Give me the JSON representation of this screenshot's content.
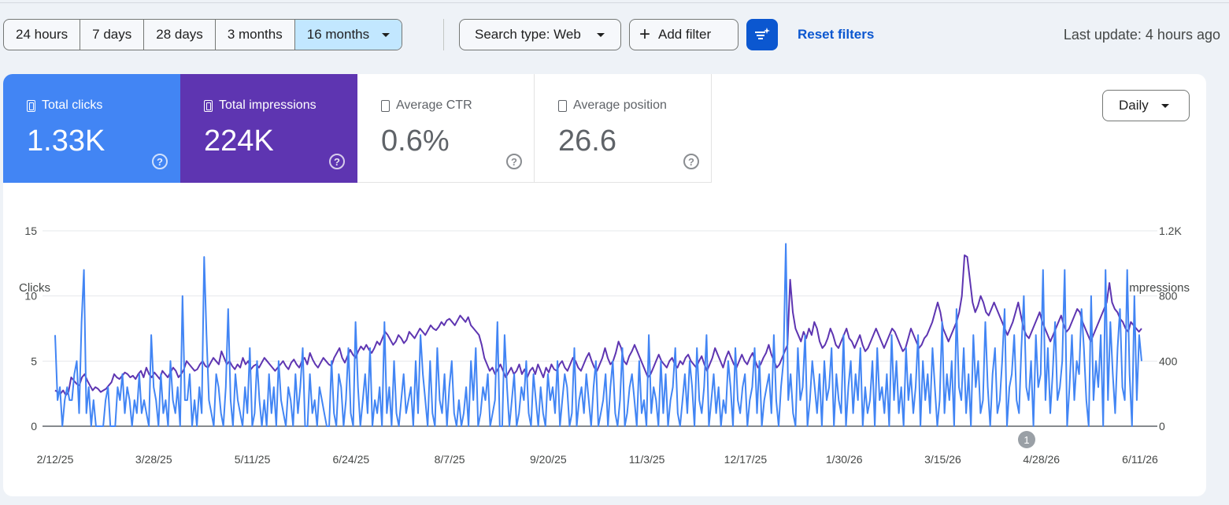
{
  "toolbar": {
    "date_ranges": [
      {
        "label": "24 hours",
        "active": false
      },
      {
        "label": "7 days",
        "active": false
      },
      {
        "label": "28 days",
        "active": false
      },
      {
        "label": "3 months",
        "active": false
      },
      {
        "label": "16 months",
        "active": true
      }
    ],
    "search_type": "Search type: Web",
    "add_filter": "Add filter",
    "reset_filters": "Reset filters",
    "last_update": "Last update: 4 hours ago"
  },
  "metrics": [
    {
      "label": "Total clicks",
      "value": "1.33K",
      "selected": true,
      "color": "#4285f4"
    },
    {
      "label": "Total impressions",
      "value": "224K",
      "selected": true,
      "color": "#5e35b1"
    },
    {
      "label": "Average CTR",
      "value": "0.6%",
      "selected": false
    },
    {
      "label": "Average position",
      "value": "26.6",
      "selected": false
    }
  ],
  "granularity": "Daily",
  "icons": {
    "dropdown": "chevron-down-icon",
    "add": "plus-icon",
    "ai_filter": "sparkle-filter-icon",
    "help": "help-circle-icon",
    "checkbox": "checkbox-icon"
  },
  "chart_data": {
    "type": "line",
    "left_axis_label": "Clicks",
    "right_axis_label": "Impressions",
    "y_left_range": [
      0,
      15
    ],
    "y_right_range": [
      0,
      1200
    ],
    "y_left_ticks": [
      "0",
      "5",
      "10",
      "15"
    ],
    "y_right_ticks": [
      "0",
      "400",
      "800",
      "1.2K"
    ],
    "x_tick_labels": [
      "2/12/25",
      "3/28/25",
      "5/11/25",
      "6/24/25",
      "8/7/25",
      "9/20/25",
      "11/3/25",
      "12/17/25",
      "1/30/26",
      "3/15/26",
      "4/28/26",
      "6/11/26"
    ],
    "x_range": [
      "2/12/25",
      "6/11/26"
    ],
    "annotation": {
      "label": "1",
      "date": "4/23/26"
    },
    "grid": true,
    "series": [
      {
        "name": "Clicks",
        "axis": "left",
        "color": "#4285f4",
        "values": [
          7,
          2,
          3,
          0,
          2,
          3,
          2,
          2,
          4,
          5,
          1,
          8,
          12,
          1,
          3,
          0,
          2,
          0,
          0,
          0,
          0,
          2,
          3,
          0,
          0,
          0,
          3,
          2,
          4,
          1,
          3,
          2,
          0,
          2,
          1,
          4,
          1,
          2,
          1,
          0,
          7,
          3,
          2,
          0,
          4,
          1,
          2,
          0,
          5,
          2,
          1,
          3,
          0,
          10,
          2,
          2,
          4,
          0,
          2,
          0,
          3,
          1,
          13,
          7,
          2,
          1,
          0,
          4,
          3,
          1,
          0,
          3,
          9,
          2,
          0,
          4,
          2,
          1,
          0,
          3,
          1,
          6,
          0,
          1,
          5,
          2,
          0,
          2,
          0,
          4,
          1,
          3,
          0,
          5,
          2,
          1,
          0,
          3,
          2,
          0,
          4,
          1,
          3,
          6,
          0,
          0,
          4,
          1,
          2,
          0,
          3,
          2,
          1,
          0,
          0,
          5,
          1,
          0,
          4,
          3,
          0,
          2,
          6,
          1,
          0,
          8,
          3,
          0,
          2,
          4,
          1,
          6,
          0,
          2,
          1,
          3,
          0,
          8,
          1,
          3,
          0,
          5,
          1,
          0,
          2,
          4,
          1,
          2,
          3,
          0,
          5,
          1,
          7,
          4,
          2,
          0,
          5,
          1,
          0,
          6,
          2,
          1,
          4,
          0,
          3,
          5,
          1,
          0,
          2,
          0,
          1,
          3,
          0,
          5,
          2,
          6,
          0,
          1,
          3,
          2,
          4,
          0,
          1,
          2,
          8,
          0,
          0,
          7,
          3,
          0,
          2,
          4,
          0,
          1,
          3,
          2,
          5,
          1,
          0,
          4,
          2,
          0,
          3,
          1,
          0,
          4,
          2,
          3,
          1,
          5,
          0,
          2,
          4,
          3,
          0,
          1,
          6,
          0,
          2,
          3,
          1,
          4,
          2,
          0,
          3,
          5,
          0,
          1,
          2,
          4,
          0,
          3,
          5,
          1,
          0,
          2,
          6,
          0,
          1,
          3,
          4,
          2,
          0,
          5,
          1,
          2,
          0,
          7,
          1,
          3,
          2,
          0,
          5,
          1,
          4,
          0,
          2,
          3,
          6,
          1,
          0,
          2,
          4,
          1,
          5,
          3,
          0,
          6,
          2,
          1,
          3,
          7,
          0,
          2,
          4,
          1,
          3,
          0,
          2,
          1,
          5,
          3,
          0,
          6,
          2,
          1,
          3,
          4,
          0,
          2,
          3,
          6,
          1,
          5,
          0,
          2,
          3,
          4,
          1,
          7,
          2,
          0,
          3,
          5,
          14,
          2,
          4,
          1,
          0,
          6,
          2,
          3,
          7,
          0,
          2,
          5,
          3,
          1,
          4,
          0,
          5,
          2,
          3,
          6,
          0,
          4,
          2,
          1,
          7,
          0,
          3,
          5,
          1,
          4,
          2,
          6,
          0,
          3,
          1,
          2,
          5,
          0,
          6,
          2,
          3,
          1,
          4,
          0,
          7,
          2,
          5,
          1,
          3,
          0,
          6,
          2,
          4,
          1,
          3,
          7,
          0,
          5,
          2,
          4,
          1,
          6,
          3,
          0,
          2,
          8,
          1,
          4,
          2,
          5,
          0,
          9,
          3,
          2,
          6,
          1,
          4,
          0,
          7,
          3,
          5,
          1,
          2,
          8,
          3,
          0,
          4,
          6,
          1,
          2,
          5,
          9,
          0,
          3,
          4,
          7,
          2,
          1,
          6,
          10,
          3,
          2,
          5,
          0,
          7,
          3,
          4,
          12,
          2,
          6,
          1,
          4,
          8,
          2,
          3,
          5,
          12,
          0,
          3,
          7,
          2,
          5,
          4,
          9,
          6,
          2,
          0,
          10,
          2,
          5,
          3,
          7,
          0,
          12,
          2,
          8,
          4,
          1,
          6,
          9,
          3,
          2,
          12,
          4,
          0,
          10,
          2,
          7,
          5
        ],
        "values_note": "approximate daily clicks read from chart"
      },
      {
        "name": "Impressions",
        "axis": "right",
        "color": "#5e35b1",
        "values": [
          220,
          210,
          200,
          220,
          190,
          210,
          300,
          280,
          260,
          250,
          300,
          320,
          280,
          250,
          220,
          240,
          230,
          210,
          220,
          230,
          250,
          270,
          320,
          300,
          290,
          310,
          330,
          320,
          300,
          310,
          290,
          320,
          340,
          300,
          360,
          320,
          300,
          330,
          310,
          290,
          340,
          320,
          300,
          330,
          360,
          340,
          300,
          320,
          350,
          400,
          380,
          360,
          340,
          350,
          380,
          400,
          370,
          360,
          390,
          420,
          400,
          380,
          460,
          420,
          380,
          400,
          370,
          350,
          380,
          360,
          420,
          380,
          400,
          350,
          370,
          380,
          360,
          390,
          420,
          400,
          380,
          360,
          340,
          360,
          380,
          400,
          370,
          350,
          390,
          410,
          380,
          360,
          400,
          420,
          380,
          450,
          410,
          380,
          360,
          390,
          420,
          400,
          380,
          370,
          420,
          450,
          480,
          420,
          390,
          430,
          470,
          440,
          420,
          460,
          490,
          470,
          500,
          470,
          450,
          480,
          520,
          500,
          540,
          580,
          560,
          530,
          500,
          520,
          560,
          540,
          510,
          530,
          580,
          560,
          540,
          570,
          600,
          580,
          560,
          590,
          620,
          600,
          590,
          610,
          640,
          620,
          650,
          660,
          640,
          620,
          650,
          680,
          660,
          640,
          670,
          620,
          600,
          580,
          560,
          500,
          420,
          380,
          340,
          360,
          320,
          350,
          380,
          340,
          300,
          330,
          360,
          320,
          340,
          380,
          320,
          350,
          300,
          340,
          360,
          320,
          380,
          340,
          300,
          360,
          330,
          380,
          350,
          340,
          380,
          400,
          360,
          340,
          380,
          420,
          400,
          360,
          340,
          380,
          420,
          450,
          400,
          360,
          340,
          380,
          420,
          480,
          420,
          380,
          400,
          450,
          520,
          480,
          400,
          380,
          430,
          460,
          500,
          460,
          420,
          380,
          340,
          300,
          320,
          360,
          400,
          440,
          400,
          380,
          360,
          400,
          420,
          380,
          360,
          400,
          380,
          420,
          440,
          400,
          380,
          360,
          400,
          430,
          380,
          340,
          380,
          420,
          480,
          440,
          400,
          360,
          420,
          460,
          420,
          380,
          360,
          400,
          440,
          400,
          380,
          420,
          450,
          400,
          360,
          380,
          420,
          450,
          500,
          440,
          400,
          360,
          380,
          420,
          460,
          500,
          900,
          700,
          600,
          560,
          520,
          580,
          540,
          600,
          560,
          640,
          600,
          520,
          480,
          500,
          540,
          600,
          560,
          500,
          480,
          520,
          560,
          600,
          540,
          520,
          480,
          520,
          560,
          500,
          460,
          480,
          520,
          560,
          600,
          560,
          520,
          480,
          520,
          560,
          600,
          580,
          540,
          500,
          460,
          480,
          540,
          600,
          560,
          520,
          480,
          500,
          540,
          560,
          600,
          640,
          700,
          760,
          700,
          600,
          560,
          520,
          560,
          600,
          640,
          700,
          800,
          1050,
          1040,
          900,
          760,
          700,
          740,
          800,
          760,
          700,
          680,
          720,
          760,
          720,
          680,
          640,
          600,
          560,
          600,
          640,
          700,
          760,
          680,
          600,
          560,
          540,
          580,
          620,
          660,
          700,
          640,
          600,
          560,
          520,
          560,
          600,
          640,
          680,
          620,
          580,
          600,
          640,
          680,
          720,
          700,
          640,
          600,
          560,
          520,
          560,
          600,
          640,
          680,
          720,
          760,
          880,
          760,
          720,
          700,
          660,
          640,
          600,
          580,
          640,
          620,
          600,
          580,
          600
        ],
        "values_note": "approximate daily impressions read from chart"
      }
    ]
  }
}
